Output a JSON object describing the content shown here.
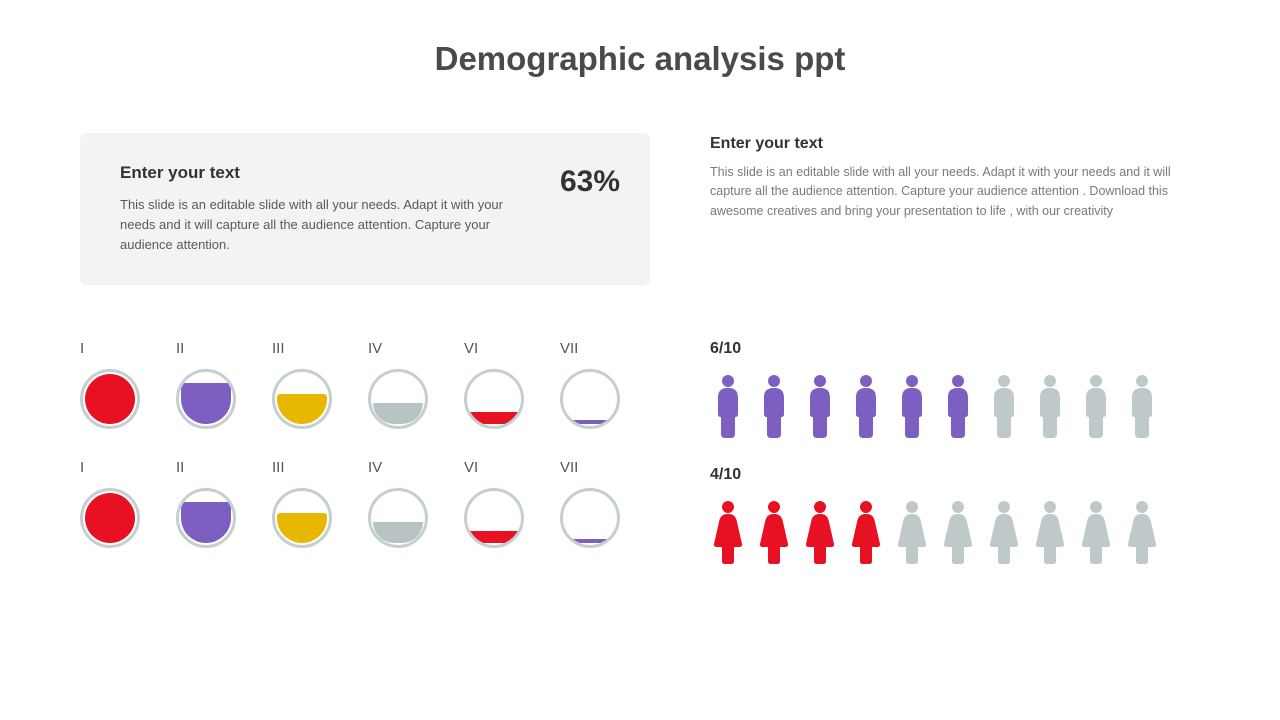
{
  "title": "Demographic analysis ppt",
  "card": {
    "heading": "Enter your text",
    "body": "This slide is an editable slide with all your needs. Adapt it with your needs and it will capture all the audience attention. Capture your audience attention.",
    "stat": "63%",
    "background": "#f3f3f3"
  },
  "right_text": {
    "heading": "Enter your text",
    "body": "This slide is an editable slide with all your needs. Adapt it with your needs and it will capture all the audience attention. Capture your audience attention . Download this awesome creatives and bring your presentation to life , with our creativity"
  },
  "circles": {
    "border_color": "#c4cfcf",
    "rows": [
      {
        "items": [
          {
            "label": "I",
            "fill_pct": 100,
            "color": "#e81123"
          },
          {
            "label": "II",
            "fill_pct": 75,
            "color": "#7c5fc0"
          },
          {
            "label": "III",
            "fill_pct": 55,
            "color": "#e8b800"
          },
          {
            "label": "IV",
            "fill_pct": 38,
            "color": "#b8c4c4"
          },
          {
            "label": "VI",
            "fill_pct": 22,
            "color": "#e81123"
          },
          {
            "label": "VII",
            "fill_pct": 8,
            "color": "#7c5fc0"
          }
        ]
      },
      {
        "items": [
          {
            "label": "I",
            "fill_pct": 100,
            "color": "#e81123"
          },
          {
            "label": "II",
            "fill_pct": 75,
            "color": "#7c5fc0"
          },
          {
            "label": "III",
            "fill_pct": 55,
            "color": "#e8b800"
          },
          {
            "label": "IV",
            "fill_pct": 38,
            "color": "#b8c4c4"
          },
          {
            "label": "VI",
            "fill_pct": 22,
            "color": "#e81123"
          },
          {
            "label": "VII",
            "fill_pct": 8,
            "color": "#7c5fc0"
          }
        ]
      }
    ]
  },
  "people": {
    "rows": [
      {
        "label": "6/10",
        "type": "male",
        "total": 10,
        "filled": 6,
        "filled_color": "#7c5fc0",
        "empty_color": "#bfc9c9"
      },
      {
        "label": "4/10",
        "type": "female",
        "total": 10,
        "filled": 4,
        "filled_color": "#e81123",
        "empty_color": "#bfc9c9"
      }
    ]
  }
}
